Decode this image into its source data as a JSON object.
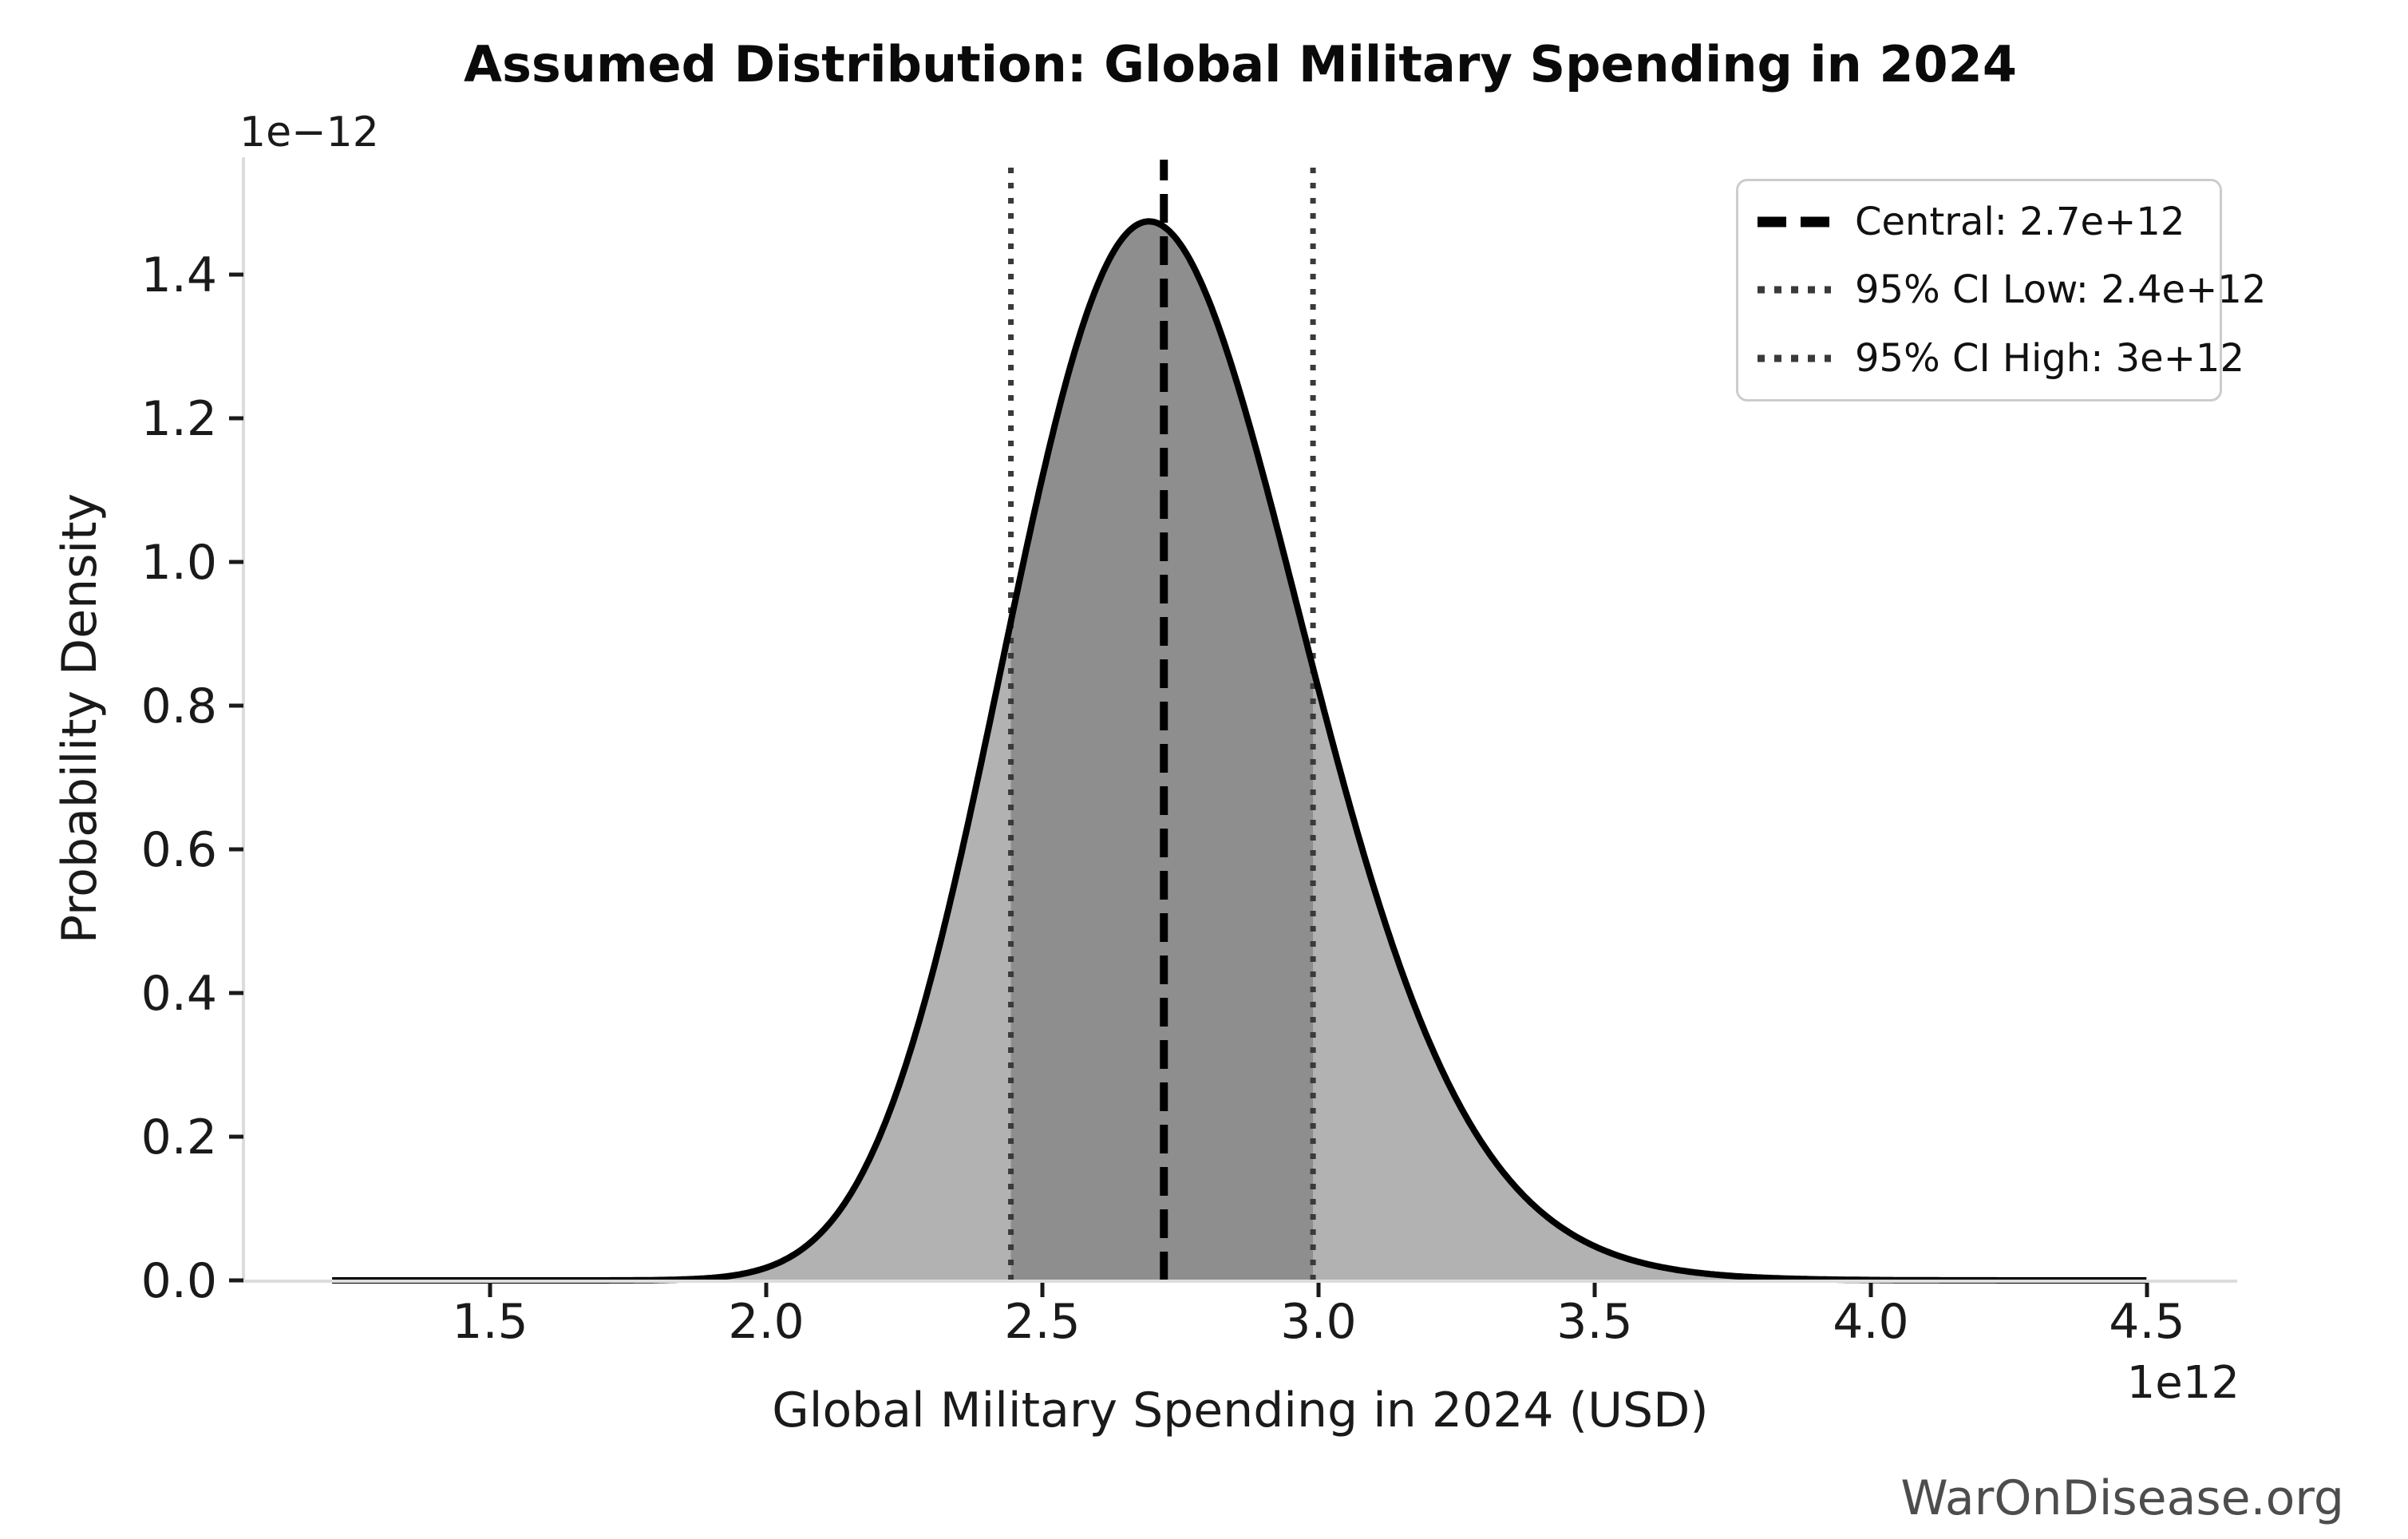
{
  "title": "Assumed Distribution: Global Military Spending in 2024",
  "watermark": "WarOnDisease.org",
  "axes": {
    "xlabel": "Global Military Spending in 2024 (USD)",
    "ylabel": "Probability Density",
    "x_offset_label": "1e12",
    "y_offset_label": "1e−12"
  },
  "legend": {
    "items": [
      {
        "label": "Central: 2.7e+12",
        "style": "dashed",
        "color": "#000000"
      },
      {
        "label": "95% CI Low: 2.4e+12",
        "style": "dotted",
        "color": "#3a3a3a"
      },
      {
        "label": "95% CI High: 3e+12",
        "style": "dotted",
        "color": "#3a3a3a"
      }
    ]
  },
  "colors": {
    "curve": "#000000",
    "fill_outer": "#b2b2b2",
    "fill_inner": "#8e8e8e",
    "vline_central": "#000000",
    "vline_ci": "#3a3a3a",
    "spine": "#dcdcdc",
    "tick": "#1a1a1a",
    "watermark": "#4d4d4d",
    "legend_border": "#cccccc"
  },
  "chart_data": {
    "type": "area",
    "title": "Assumed Distribution: Global Military Spending in 2024",
    "xlabel": "Global Military Spending in 2024 (USD)",
    "ylabel": "Probability Density",
    "x_unit": 1000000000000.0,
    "y_unit": 1e-12,
    "xlim_trillions": [
      1.05,
      4.66
    ],
    "ylim_e12": [
      0,
      1.56
    ],
    "x_ticks_trillions": [
      1.5,
      2.0,
      2.5,
      3.0,
      3.5,
      4.0,
      4.5
    ],
    "y_ticks_e12": [
      0.0,
      0.2,
      0.4,
      0.6,
      0.8,
      1.0,
      1.2,
      1.4
    ],
    "grid": false,
    "legend_position": "upper right",
    "curve": {
      "distribution": "lognormal",
      "median_trillions": 2.72,
      "sigma_log": 0.1,
      "mode_trillions": 2.693,
      "peak_density_e12": 1.47,
      "x_min_trillions": 1.214,
      "x_max_trillions": 4.499
    },
    "vlines_trillions": {
      "central": 2.72,
      "ci_low": 2.443,
      "ci_high": 2.99
    },
    "shaded_ci_region_trillions": [
      2.443,
      2.99
    ],
    "samples": [
      {
        "x_trillions": 2.0,
        "density_e12": 0.018
      },
      {
        "x_trillions": 2.1,
        "density_e12": 0.067
      },
      {
        "x_trillions": 2.2,
        "density_e12": 0.191
      },
      {
        "x_trillions": 2.3,
        "density_e12": 0.425
      },
      {
        "x_trillions": 2.4,
        "density_e12": 0.759
      },
      {
        "x_trillions": 2.5,
        "density_e12": 1.118
      },
      {
        "x_trillions": 2.6,
        "density_e12": 1.386
      },
      {
        "x_trillions": 2.7,
        "density_e12": 1.473
      },
      {
        "x_trillions": 2.8,
        "density_e12": 1.366
      },
      {
        "x_trillions": 2.9,
        "density_e12": 1.12
      },
      {
        "x_trillions": 3.0,
        "density_e12": 0.823
      },
      {
        "x_trillions": 3.1,
        "density_e12": 0.547
      },
      {
        "x_trillions": 3.2,
        "density_e12": 0.333
      },
      {
        "x_trillions": 3.3,
        "density_e12": 0.187
      },
      {
        "x_trillions": 3.4,
        "density_e12": 0.097
      },
      {
        "x_trillions": 3.5,
        "density_e12": 0.048
      },
      {
        "x_trillions": 3.6,
        "density_e12": 0.022
      },
      {
        "x_trillions": 3.8,
        "density_e12": 0.004
      }
    ]
  }
}
